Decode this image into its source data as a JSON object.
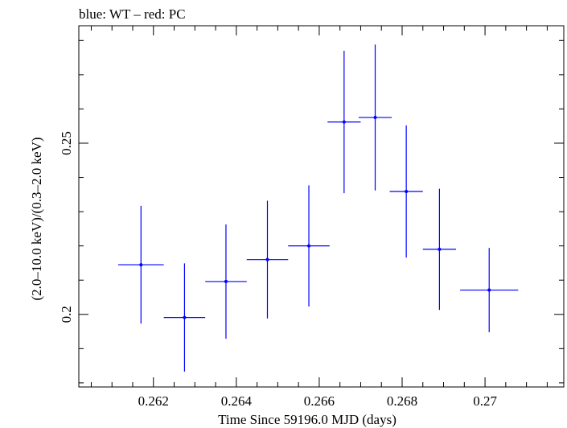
{
  "chart_data": {
    "type": "scatter",
    "title": "blue: WT – red: PC",
    "xlabel": "Time Since 59196.0 MJD (days)",
    "ylabel": "(2.0–10.0 keV)/(0.3–2.0 keV)",
    "xlim": [
      0.2602,
      0.2719
    ],
    "ylim": [
      0.1788,
      0.2843
    ],
    "xticks": [
      {
        "value": 0.262,
        "label": "0.262"
      },
      {
        "value": 0.264,
        "label": "0.264"
      },
      {
        "value": 0.266,
        "label": "0.266"
      },
      {
        "value": 0.268,
        "label": "0.268"
      },
      {
        "value": 0.27,
        "label": "0.27"
      }
    ],
    "yticks": [
      {
        "value": 0.2,
        "label": "0.2"
      },
      {
        "value": 0.25,
        "label": "0.25"
      }
    ],
    "grid": false,
    "colors": {
      "WT": "#0000ff",
      "PC": "#ff0000"
    },
    "series": [
      {
        "name": "WT",
        "color": "#0000ff",
        "points": [
          {
            "x": 0.2617,
            "xerr": 0.00055,
            "y": 0.2145,
            "yerr": 0.0172
          },
          {
            "x": 0.26275,
            "xerr": 0.0005,
            "y": 0.1991,
            "yerr": 0.0158
          },
          {
            "x": 0.26375,
            "xerr": 0.0005,
            "y": 0.2096,
            "yerr": 0.0167
          },
          {
            "x": 0.26475,
            "xerr": 0.0005,
            "y": 0.216,
            "yerr": 0.0172
          },
          {
            "x": 0.26575,
            "xerr": 0.0005,
            "y": 0.22,
            "yerr": 0.0177
          },
          {
            "x": 0.2666,
            "xerr": 0.0004,
            "y": 0.2562,
            "yerr": 0.0208
          },
          {
            "x": 0.26735,
            "xerr": 0.0004,
            "y": 0.2575,
            "yerr": 0.0213
          },
          {
            "x": 0.2681,
            "xerr": 0.0004,
            "y": 0.2359,
            "yerr": 0.0193
          },
          {
            "x": 0.2689,
            "xerr": 0.0004,
            "y": 0.219,
            "yerr": 0.0177
          },
          {
            "x": 0.2701,
            "xerr": 0.0007,
            "y": 0.2071,
            "yerr": 0.0123
          }
        ]
      }
    ]
  }
}
